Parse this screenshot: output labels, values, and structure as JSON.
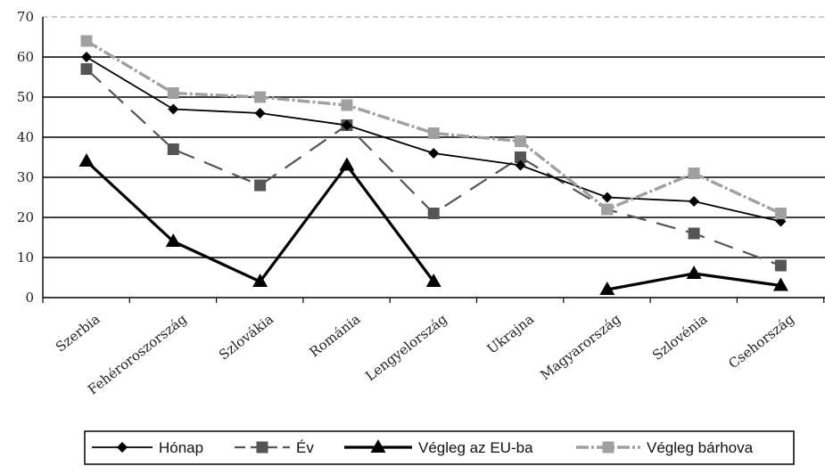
{
  "chart_data": {
    "type": "line",
    "categories": [
      "Szerbia",
      "Fehéroroszország",
      "Szlovákia",
      "Románia",
      "Lengyelország",
      "Ukrajna",
      "Magyarország",
      "Szlovénia",
      "Csehország"
    ],
    "series": [
      {
        "name": "Hónap",
        "values": [
          60,
          47,
          46,
          43,
          36,
          33,
          25,
          24,
          19
        ],
        "color": "#000000",
        "marker": "diamond"
      },
      {
        "name": "Év",
        "values": [
          57,
          37,
          28,
          43,
          21,
          35,
          22,
          16,
          8
        ],
        "color": "#555555",
        "marker": "square",
        "dash": "dashed"
      },
      {
        "name": "Végleg az EU-ba",
        "values": [
          34,
          14,
          4,
          33,
          4,
          null,
          2,
          6,
          3
        ],
        "color": "#000000",
        "marker": "triangle"
      },
      {
        "name": "Végleg bárhova",
        "values": [
          64,
          51,
          50,
          48,
          41,
          39,
          22,
          31,
          21
        ],
        "color": "#a0a0a0",
        "marker": "square"
      }
    ],
    "yticks": [
      0,
      10,
      20,
      30,
      40,
      50,
      60,
      70
    ],
    "ylim": [
      0,
      70
    ],
    "grid": true,
    "legend_position": "bottom"
  }
}
